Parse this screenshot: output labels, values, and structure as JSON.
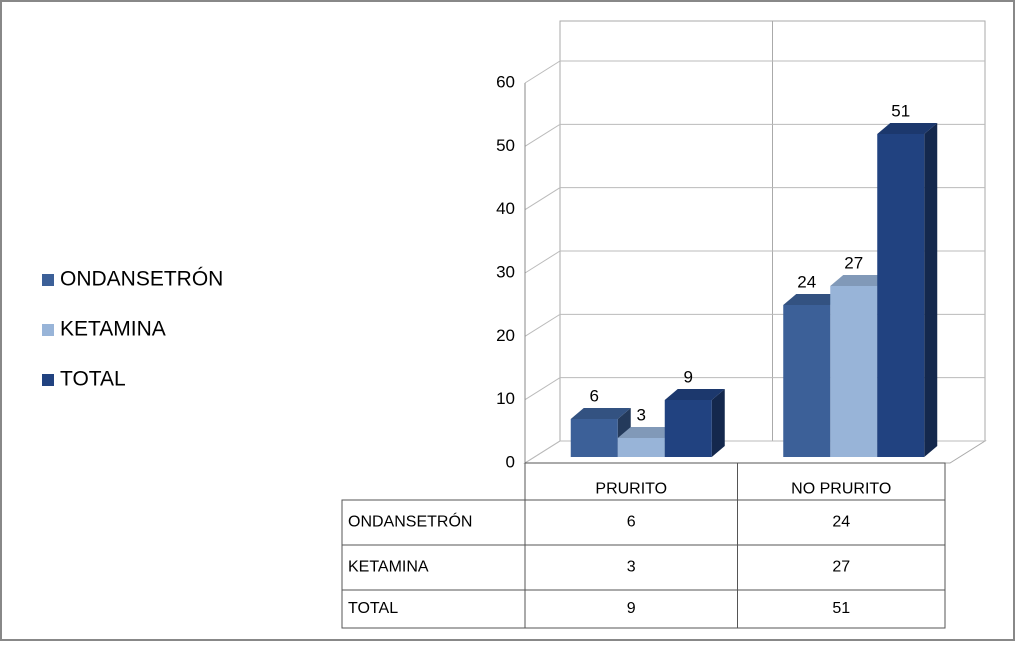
{
  "chart_data": {
    "type": "bar3d",
    "categories": [
      "PRURITO",
      "NO PRURITO"
    ],
    "series": [
      {
        "name": "ONDANSETRÓN",
        "color": "#3c6098",
        "values": [
          6,
          24
        ]
      },
      {
        "name": "KETAMINA",
        "color": "#98b4d8",
        "values": [
          3,
          27
        ]
      },
      {
        "name": "TOTAL",
        "color": "#214280",
        "values": [
          9,
          51
        ]
      }
    ],
    "ylim": [
      0,
      60
    ],
    "yticks": [
      0,
      10,
      20,
      30,
      40,
      50,
      60
    ],
    "grid": true
  }
}
